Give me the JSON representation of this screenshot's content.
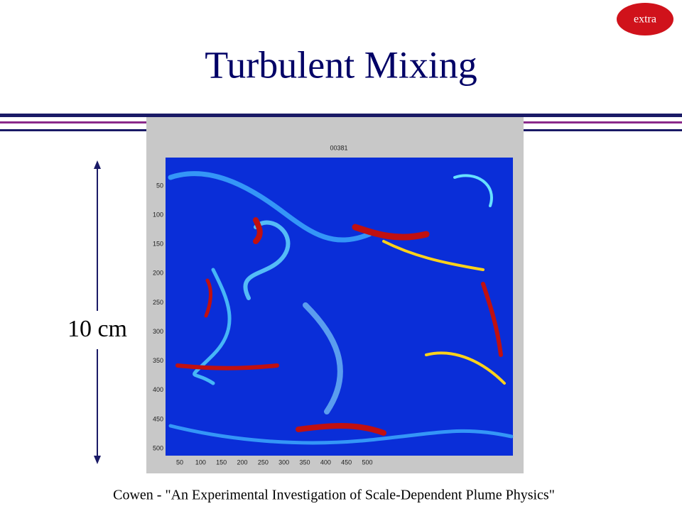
{
  "header": {
    "title": "Turbulent Mixing",
    "badge": "extra"
  },
  "figure": {
    "frame_label": "00381",
    "y_ticks": [
      "50",
      "100",
      "150",
      "200",
      "250",
      "300",
      "350",
      "400",
      "450",
      "500"
    ],
    "x_ticks": [
      "50",
      "100",
      "150",
      "200",
      "250",
      "300",
      "350",
      "400",
      "450",
      "500"
    ],
    "scale_label": "10 cm"
  },
  "footer": {
    "citation": "Cowen - \"An Experimental Investigation of Scale-Dependent Plume Physics\""
  }
}
